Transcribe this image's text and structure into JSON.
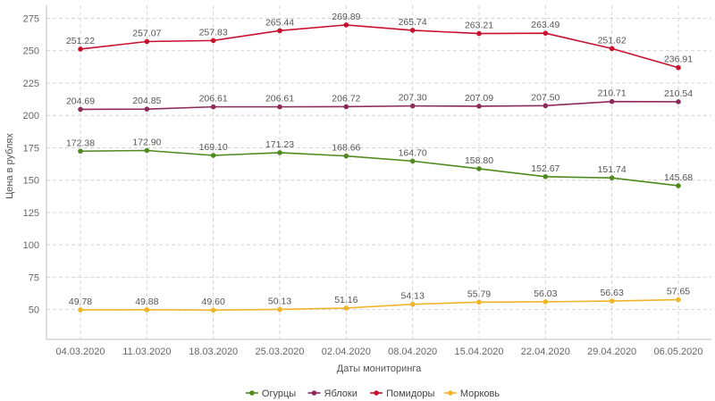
{
  "chart_data": {
    "type": "line",
    "categories": [
      "04.03.2020",
      "11.03.2020",
      "18.03.2020",
      "25.03.2020",
      "02.04.2020",
      "08.04.2020",
      "15.04.2020",
      "22.04.2020",
      "29.04.2020",
      "06.05.2020"
    ],
    "xlabel": "Даты мониторинга",
    "ylabel": "Цена в рублях",
    "ylim": [
      27,
      285
    ],
    "yticks": [
      50,
      75,
      100,
      125,
      150,
      175,
      200,
      225,
      250,
      275
    ],
    "grid": true,
    "legend_position": "bottom",
    "series": [
      {
        "name": "Огурцы",
        "color": "#4e8a1e",
        "values": [
          172.38,
          172.9,
          169.1,
          171.23,
          168.66,
          164.7,
          158.8,
          152.67,
          151.74,
          145.68
        ]
      },
      {
        "name": "Яблоки",
        "color": "#8e2a5a",
        "values": [
          204.69,
          204.85,
          206.61,
          206.61,
          206.72,
          207.3,
          207.09,
          207.5,
          210.71,
          210.54
        ]
      },
      {
        "name": "Помидоры",
        "color": "#c8102e",
        "values": [
          251.22,
          257.07,
          257.83,
          265.44,
          269.89,
          265.74,
          263.21,
          263.49,
          251.62,
          236.91
        ]
      },
      {
        "name": "Морковь",
        "color": "#f0b429",
        "values": [
          49.78,
          49.88,
          49.6,
          50.13,
          51.16,
          54.13,
          55.79,
          56.03,
          56.63,
          57.65
        ]
      }
    ]
  }
}
